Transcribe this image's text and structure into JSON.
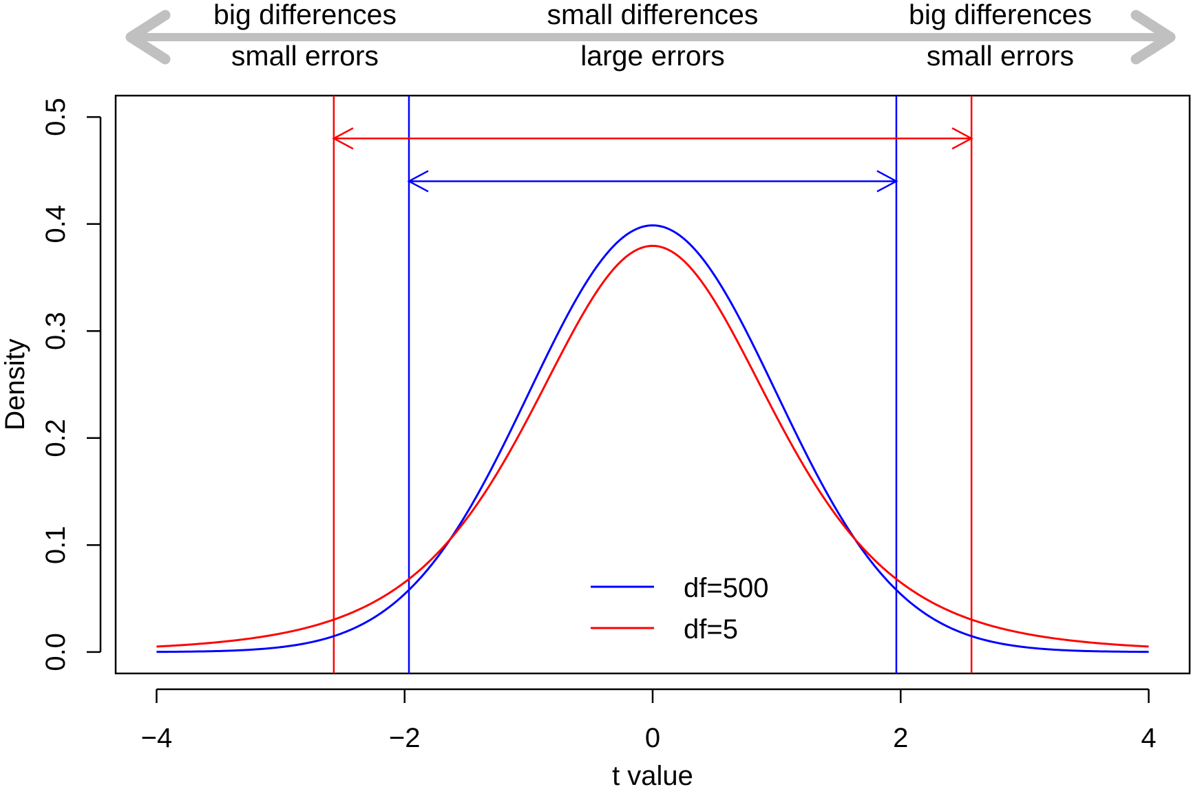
{
  "chart_data": {
    "type": "line",
    "xlabel": "t value",
    "ylabel": "Density",
    "xlim": [
      -4.33,
      4.33
    ],
    "ylim": [
      -0.02,
      0.52
    ],
    "x_ticks": [
      -4,
      -2,
      0,
      2,
      4
    ],
    "x_tick_labels": [
      "−4",
      "−2",
      "0",
      "2",
      "4"
    ],
    "y_ticks": [
      0,
      0.1,
      0.2,
      0.3,
      0.4,
      0.5
    ],
    "y_tick_labels": [
      "0.0",
      "0.1",
      "0.2",
      "0.3",
      "0.4",
      "0.5"
    ],
    "grid": false,
    "legend_position": "bottom-center",
    "series": [
      {
        "name": "df=500",
        "df": 500,
        "color": "#0000ff"
      },
      {
        "name": "df=5",
        "df": 5,
        "color": "#ff0000"
      }
    ],
    "critical_lines": [
      {
        "series": "df=500",
        "x": [
          -1.965,
          1.965
        ],
        "color": "#0000ff"
      },
      {
        "series": "df=5",
        "x": [
          -2.571,
          2.571
        ],
        "color": "#ff0000"
      }
    ],
    "range_arrows": [
      {
        "series": "df=5",
        "from": -2.571,
        "to": 2.571,
        "y": 0.48,
        "color": "#ff0000"
      },
      {
        "series": "df=500",
        "from": -1.965,
        "to": 1.965,
        "y": 0.44,
        "color": "#0000ff"
      }
    ],
    "top_annotations": [
      {
        "x": -2.8,
        "lines": [
          "big differences",
          "small errors"
        ]
      },
      {
        "x": 0,
        "lines": [
          "small differences",
          "large errors"
        ]
      },
      {
        "x": 2.8,
        "lines": [
          "big differences",
          "small errors"
        ]
      }
    ],
    "top_arrow_color": "#c0c0c0"
  }
}
